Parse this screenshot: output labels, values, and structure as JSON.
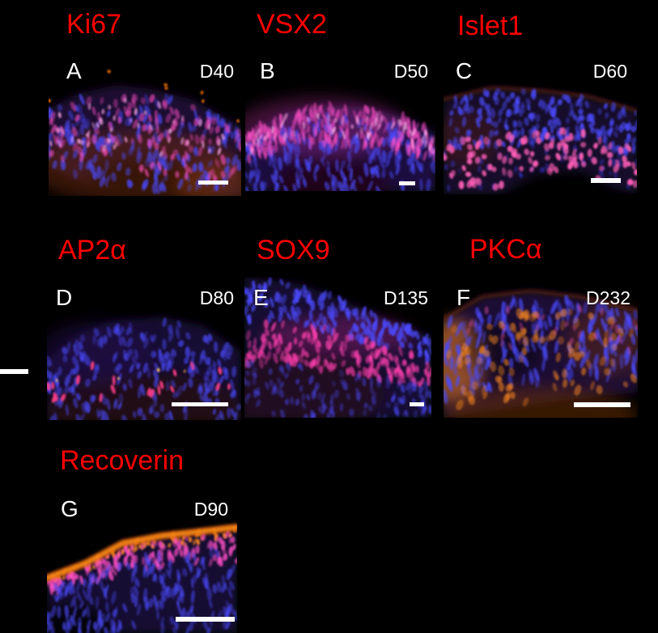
{
  "figure": {
    "background": "#000000",
    "marker_label_color": "#ff0000",
    "annotation_color": "#ffffff",
    "scale_bar_color": "#ffffff",
    "stain_colors": {
      "nuclei_dapi_blue": "#4a4aff",
      "marker_magenta": "#ff4fc6",
      "marker_orange": "#ff8a20",
      "marker_red_pink": "#ff3f86"
    },
    "panels": [
      {
        "letter": "A",
        "marker": "Ki67",
        "day": "D40"
      },
      {
        "letter": "B",
        "marker": "VSX2",
        "day": "D50"
      },
      {
        "letter": "C",
        "marker": "Islet1",
        "day": "D60"
      },
      {
        "letter": "D",
        "marker": "AP2α",
        "day": "D80"
      },
      {
        "letter": "E",
        "marker": "SOX9",
        "day": "D135"
      },
      {
        "letter": "F",
        "marker": "PKCα",
        "day": "D232"
      },
      {
        "letter": "G",
        "marker": "Recoverin",
        "day": "D90"
      }
    ]
  }
}
